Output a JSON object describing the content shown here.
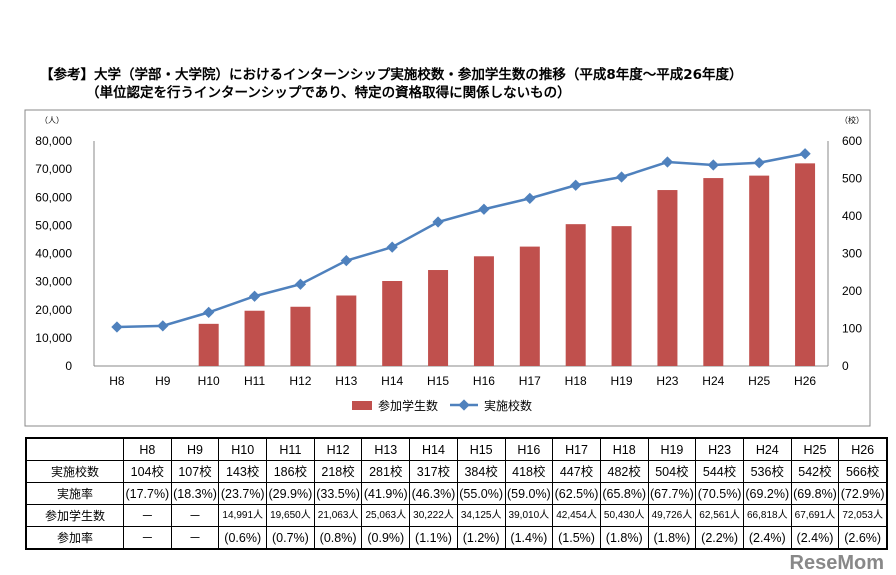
{
  "title": {
    "line1": "【参考】大学（学部・大学院）におけるインターンシップ実施校数・参加学生数の推移（平成8年度～平成26年度）",
    "line2": "（単位認定を行うインターンシップであり、特定の資格取得に関係しないもの）"
  },
  "chart_data": {
    "type": "bar+line",
    "categories": [
      "H8",
      "H9",
      "H10",
      "H11",
      "H12",
      "H13",
      "H14",
      "H15",
      "H16",
      "H17",
      "H18",
      "H19",
      "H23",
      "H24",
      "H25",
      "H26"
    ],
    "series": [
      {
        "name": "参加学生数",
        "type": "bar",
        "axis": "left",
        "color": "#c0504d",
        "values": [
          null,
          null,
          14991,
          19650,
          21063,
          25063,
          30222,
          34125,
          39010,
          42454,
          50430,
          49726,
          62561,
          66818,
          67691,
          72053
        ]
      },
      {
        "name": "実施校数",
        "type": "line",
        "axis": "right",
        "color": "#4f81bd",
        "values": [
          104,
          107,
          143,
          186,
          218,
          281,
          317,
          384,
          418,
          447,
          482,
          504,
          544,
          536,
          542,
          566
        ]
      }
    ],
    "left_axis": {
      "unit": "（人）",
      "ylim": [
        0,
        80000
      ],
      "ticks": [
        "0",
        "10,000",
        "20,000",
        "30,000",
        "40,000",
        "50,000",
        "60,000",
        "70,000",
        "80,000"
      ]
    },
    "right_axis": {
      "unit": "（校）",
      "ylim": [
        0,
        600
      ],
      "ticks": [
        "0",
        "100",
        "200",
        "300",
        "400",
        "500",
        "600"
      ]
    },
    "legend": "bottom"
  },
  "table": {
    "header": [
      "",
      "H8",
      "H9",
      "H10",
      "H11",
      "H12",
      "H13",
      "H14",
      "H15",
      "H16",
      "H17",
      "H18",
      "H19",
      "H23",
      "H24",
      "H25",
      "H26"
    ],
    "rows": [
      [
        "実施校数",
        "104校",
        "107校",
        "143校",
        "186校",
        "218校",
        "281校",
        "317校",
        "384校",
        "418校",
        "447校",
        "482校",
        "504校",
        "544校",
        "536校",
        "542校",
        "566校"
      ],
      [
        "実施率",
        "(17.7%)",
        "(18.3%)",
        "(23.7%)",
        "(29.9%)",
        "(33.5%)",
        "(41.9%)",
        "(46.3%)",
        "(55.0%)",
        "(59.0%)",
        "(62.5%)",
        "(65.8%)",
        "(67.7%)",
        "(70.5%)",
        "(69.2%)",
        "(69.8%)",
        "(72.9%)"
      ],
      [
        "参加学生数",
        "－",
        "－",
        "14,991人",
        "19,650人",
        "21,063人",
        "25,063人",
        "30,222人",
        "34,125人",
        "39,010人",
        "42,454人",
        "50,430人",
        "49,726人",
        "62,561人",
        "66,818人",
        "67,691人",
        "72,053人"
      ],
      [
        "参加率",
        "－",
        "－",
        "(0.6%)",
        "(0.7%)",
        "(0.8%)",
        "(0.9%)",
        "(1.1%)",
        "(1.2%)",
        "(1.4%)",
        "(1.5%)",
        "(1.8%)",
        "(1.8%)",
        "(2.2%)",
        "(2.4%)",
        "(2.4%)",
        "(2.6%)"
      ]
    ]
  },
  "watermark": "ReseMom"
}
